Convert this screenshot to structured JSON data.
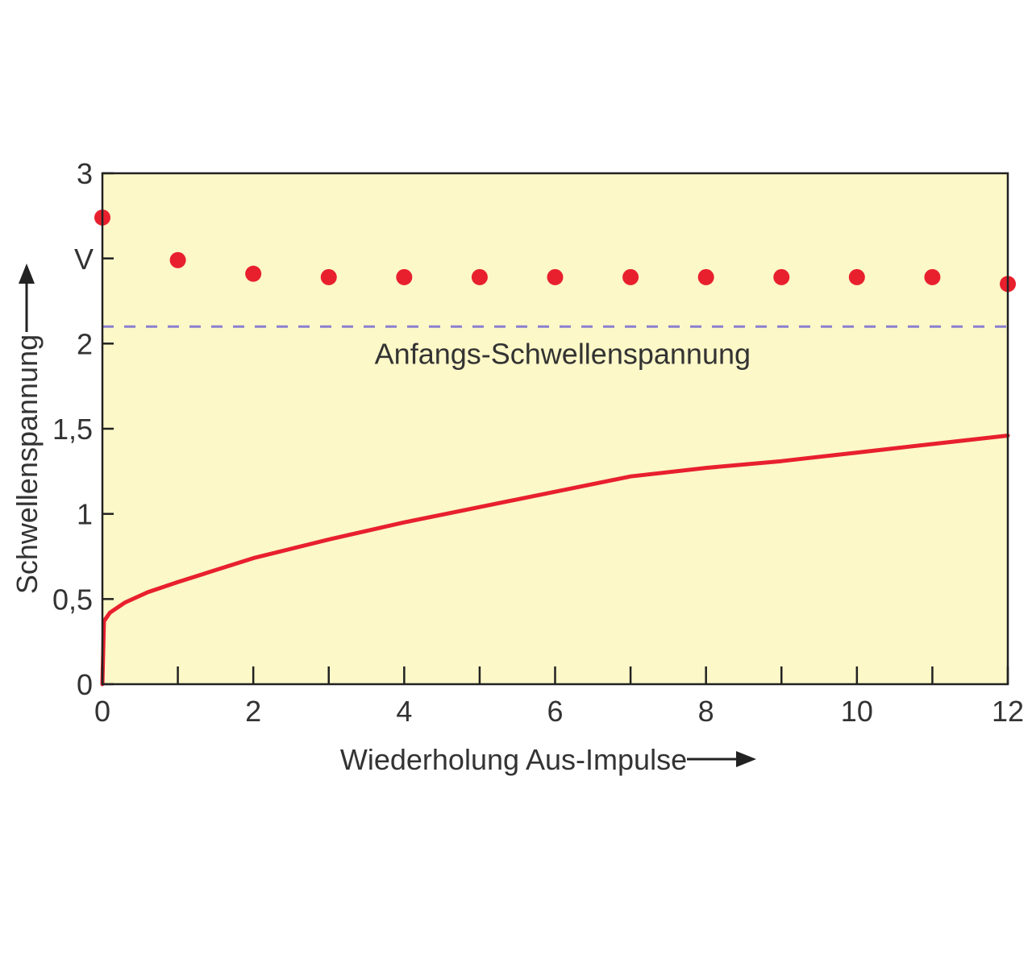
{
  "chart_data": {
    "type": "scatter",
    "xlabel": "Wiederholung Aus-Impulse",
    "ylabel": "Schwellenspannung",
    "yunit": "V",
    "xlim": [
      0,
      12
    ],
    "ylim": [
      0,
      3
    ],
    "xticks": [
      0,
      1,
      2,
      3,
      4,
      5,
      6,
      7,
      8,
      9,
      10,
      11,
      12
    ],
    "xtick_labels": [
      "0",
      "2",
      "4",
      "6",
      "8",
      "10",
      "12"
    ],
    "xtick_label_values": [
      0,
      2,
      4,
      6,
      8,
      10,
      12
    ],
    "yticks": [
      0,
      0.5,
      1,
      1.5,
      2,
      2.5,
      3
    ],
    "ytick_labels": [
      "0",
      "0,5",
      "1",
      "1,5",
      "2",
      "",
      "3"
    ],
    "grid": false,
    "colors": {
      "plot_bg": "#fcf8c8",
      "points": "#e8202e",
      "curve": "#e8202e",
      "reference": "#8a7fd0",
      "text": "#333333"
    },
    "series": [
      {
        "kind": "points",
        "x": [
          0,
          1,
          2,
          3,
          4,
          5,
          6,
          7,
          8,
          9,
          10,
          11,
          12
        ],
        "y": [
          2.74,
          2.49,
          2.41,
          2.39,
          2.39,
          2.39,
          2.39,
          2.39,
          2.39,
          2.39,
          2.39,
          2.39,
          2.35
        ]
      },
      {
        "kind": "line",
        "x": [
          0,
          0.02,
          0.1,
          0.3,
          0.6,
          1,
          1.5,
          2,
          3,
          4,
          5,
          6,
          7,
          8,
          9,
          10,
          11,
          12
        ],
        "y": [
          0,
          0.37,
          0.42,
          0.48,
          0.54,
          0.6,
          0.67,
          0.74,
          0.85,
          0.95,
          1.04,
          1.13,
          1.22,
          1.27,
          1.31,
          1.36,
          1.41,
          1.46
        ]
      }
    ],
    "reference_line": {
      "y": 2.1,
      "style": "dashed"
    },
    "annotations": [
      {
        "text": "Anfangs-Schwellenspannung",
        "x": 6.1,
        "y": 1.88
      }
    ]
  }
}
